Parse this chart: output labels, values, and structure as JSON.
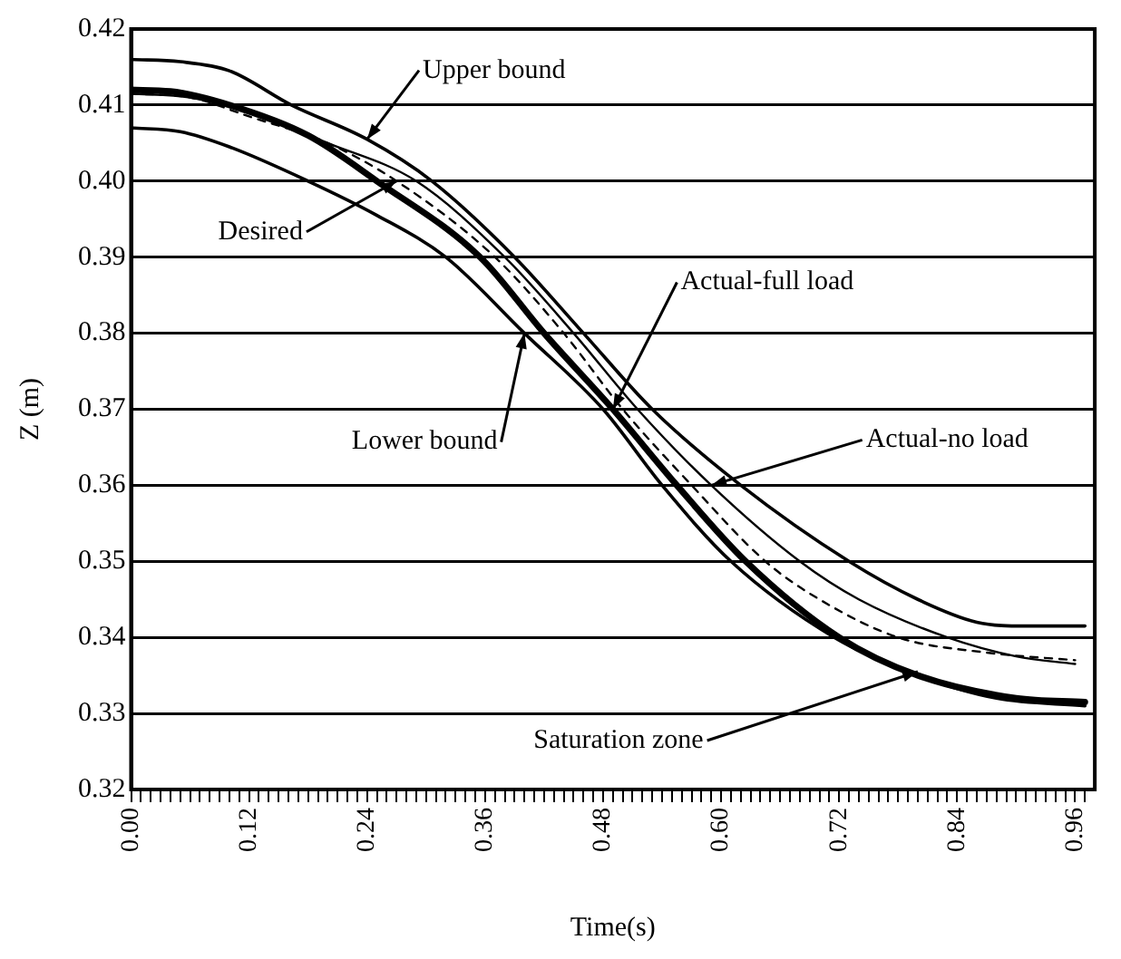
{
  "chart_data": {
    "type": "line",
    "xlabel": "Time(s)",
    "ylabel": "Z (m)",
    "xlim": [
      0,
      0.98
    ],
    "ylim": [
      0.32,
      0.42
    ],
    "xticks": [
      {
        "value": 0,
        "label": "0.00"
      },
      {
        "value": 0.01,
        "label": null
      },
      {
        "value": 0.02,
        "label": null
      },
      {
        "value": 0.03,
        "label": null
      },
      {
        "value": 0.04,
        "label": null
      },
      {
        "value": 0.05,
        "label": null
      },
      {
        "value": 0.06,
        "label": null
      },
      {
        "value": 0.07,
        "label": null
      },
      {
        "value": 0.08,
        "label": null
      },
      {
        "value": 0.09,
        "label": null
      },
      {
        "value": 0.1,
        "label": null
      },
      {
        "value": 0.11,
        "label": null
      },
      0.12,
      {
        "value": 0.13,
        "label": null
      },
      {
        "value": 0.14,
        "label": null
      },
      {
        "value": 0.15,
        "label": null
      },
      {
        "value": 0.16,
        "label": null
      },
      {
        "value": 0.17,
        "label": null
      },
      {
        "value": 0.18,
        "label": null
      },
      {
        "value": 0.19,
        "label": null
      },
      {
        "value": 0.2,
        "label": null
      },
      {
        "value": 0.21,
        "label": null
      },
      {
        "value": 0.22,
        "label": null
      },
      {
        "value": 0.23,
        "label": null
      },
      0.24,
      {
        "value": 0.25,
        "label": null
      },
      {
        "value": 0.26,
        "label": null
      },
      {
        "value": 0.27,
        "label": null
      },
      {
        "value": 0.28,
        "label": null
      },
      {
        "value": 0.29,
        "label": null
      },
      {
        "value": 0.3,
        "label": null
      },
      {
        "value": 0.31,
        "label": null
      },
      {
        "value": 0.32,
        "label": null
      },
      {
        "value": 0.33,
        "label": null
      },
      {
        "value": 0.34,
        "label": null
      },
      {
        "value": 0.35,
        "label": null
      },
      0.36,
      {
        "value": 0.37,
        "label": null
      },
      {
        "value": 0.38,
        "label": null
      },
      {
        "value": 0.39,
        "label": null
      },
      {
        "value": 0.4,
        "label": null
      },
      {
        "value": 0.41,
        "label": null
      },
      {
        "value": 0.42,
        "label": null
      },
      {
        "value": 0.43,
        "label": null
      },
      {
        "value": 0.44,
        "label": null
      },
      {
        "value": 0.45,
        "label": null
      },
      {
        "value": 0.46,
        "label": null
      },
      {
        "value": 0.47,
        "label": null
      },
      0.48,
      {
        "value": 0.49,
        "label": null
      },
      {
        "value": 0.5,
        "label": null
      },
      {
        "value": 0.51,
        "label": null
      },
      {
        "value": 0.52,
        "label": null
      },
      {
        "value": 0.53,
        "label": null
      },
      {
        "value": 0.54,
        "label": null
      },
      {
        "value": 0.55,
        "label": null
      },
      {
        "value": 0.56,
        "label": null
      },
      {
        "value": 0.57,
        "label": null
      },
      {
        "value": 0.58,
        "label": null
      },
      {
        "value": 0.59,
        "label": null
      },
      {
        "value": 0.6,
        "label": "0.60"
      },
      {
        "value": 0.61,
        "label": null
      },
      {
        "value": 0.62,
        "label": null
      },
      {
        "value": 0.63,
        "label": null
      },
      {
        "value": 0.64,
        "label": null
      },
      {
        "value": 0.65,
        "label": null
      },
      {
        "value": 0.66,
        "label": null
      },
      {
        "value": 0.67,
        "label": null
      },
      {
        "value": 0.68,
        "label": null
      },
      {
        "value": 0.69,
        "label": null
      },
      {
        "value": 0.7,
        "label": null
      },
      {
        "value": 0.71,
        "label": null
      },
      0.72,
      {
        "value": 0.73,
        "label": null
      },
      {
        "value": 0.74,
        "label": null
      },
      {
        "value": 0.75,
        "label": null
      },
      {
        "value": 0.76,
        "label": null
      },
      {
        "value": 0.77,
        "label": null
      },
      {
        "value": 0.78,
        "label": null
      },
      {
        "value": 0.79,
        "label": null
      },
      {
        "value": 0.8,
        "label": null
      },
      {
        "value": 0.81,
        "label": null
      },
      {
        "value": 0.82,
        "label": null
      },
      {
        "value": 0.83,
        "label": null
      },
      0.84,
      {
        "value": 0.85,
        "label": null
      },
      {
        "value": 0.86,
        "label": null
      },
      {
        "value": 0.87,
        "label": null
      },
      {
        "value": 0.88,
        "label": null
      },
      {
        "value": 0.89,
        "label": null
      },
      {
        "value": 0.9,
        "label": null
      },
      {
        "value": 0.91,
        "label": null
      },
      {
        "value": 0.92,
        "label": null
      },
      {
        "value": 0.93,
        "label": null
      },
      {
        "value": 0.94,
        "label": null
      },
      {
        "value": 0.95,
        "label": null
      },
      0.96,
      {
        "value": 0.97,
        "label": null
      }
    ],
    "yticks": [
      0.32,
      0.33,
      0.34,
      0.35,
      0.36,
      0.37,
      0.38,
      0.39,
      {
        "value": 0.4,
        "label": "0.40"
      },
      0.41,
      0.42
    ],
    "grid": "y",
    "legend": false,
    "marker": "none",
    "series": [
      {
        "color": "#000000",
        "line_style": "solid",
        "x": [
          0,
          0.05,
          0.1,
          0.163,
          0.24,
          0.306,
          0.39,
          0.46,
          0.53,
          0.62,
          0.73,
          0.8,
          0.86,
          0.91,
          0.97
        ],
        "values": [
          0.416,
          0.4157,
          0.4145,
          0.41,
          0.4055,
          0.4,
          0.39,
          0.38,
          0.37,
          0.36,
          0.35,
          0.345,
          0.342,
          0.3415,
          0.3415
        ]
      },
      {
        "color": "#000000",
        "line_style": "dashed",
        "x": [
          0,
          0.06,
          0.12,
          0.2,
          0.27,
          0.37,
          0.44,
          0.5,
          0.57,
          0.645,
          0.7,
          0.78,
          0.87,
          0.96
        ],
        "values": [
          0.4115,
          0.411,
          0.4085,
          0.405,
          0.4,
          0.39,
          0.38,
          0.37,
          0.36,
          0.35,
          0.345,
          0.34,
          0.338,
          0.337
        ]
      },
      {
        "color": "#000000",
        "line_style": "solid",
        "x": [
          0,
          0.05,
          0.1,
          0.18,
          0.25,
          0.32,
          0.4,
          0.48,
          0.54,
          0.61,
          0.715,
          0.8,
          0.88,
          0.97
        ],
        "values": [
          0.407,
          0.4065,
          0.4045,
          0.4,
          0.3955,
          0.39,
          0.38,
          0.37,
          0.36,
          0.35,
          0.34,
          0.335,
          0.332,
          0.331
        ]
      },
      {
        "color": "#000000",
        "line_style": "solid",
        "x": [
          0,
          0.04,
          0.1,
          0.18,
          0.25,
          0.355,
          0.42,
          0.49,
          0.555,
          0.625,
          0.72,
          0.8,
          0.9,
          0.97
        ],
        "values": [
          0.412,
          0.4118,
          0.41,
          0.406,
          0.4,
          0.39,
          0.38,
          0.37,
          0.36,
          0.35,
          0.34,
          0.335,
          0.332,
          0.3315
        ]
      },
      {
        "color": "#000000",
        "line_style": "solid",
        "x": [
          0,
          0.06,
          0.12,
          0.2,
          0.29,
          0.38,
          0.45,
          0.515,
          0.59,
          0.68,
          0.74,
          0.83,
          0.9,
          0.96
        ],
        "values": [
          0.4115,
          0.411,
          0.409,
          0.405,
          0.4,
          0.39,
          0.38,
          0.37,
          0.36,
          0.35,
          0.345,
          0.34,
          0.3375,
          0.3365
        ]
      }
    ],
    "annotations": [
      {
        "text": "Upper bound",
        "x": 0.24,
        "y": 0.4055
      },
      {
        "text": "Desired",
        "x": 0.27,
        "y": 0.4
      },
      {
        "text": "Lower bound",
        "x": 0.4,
        "y": 0.38
      },
      {
        "text": "Actual-full load",
        "x": 0.49,
        "y": 0.37
      },
      {
        "text": "Actual-no load",
        "x": 0.59,
        "y": 0.36
      },
      {
        "text": "Saturation zone",
        "x": 0.8,
        "y": 0.3355
      }
    ]
  }
}
